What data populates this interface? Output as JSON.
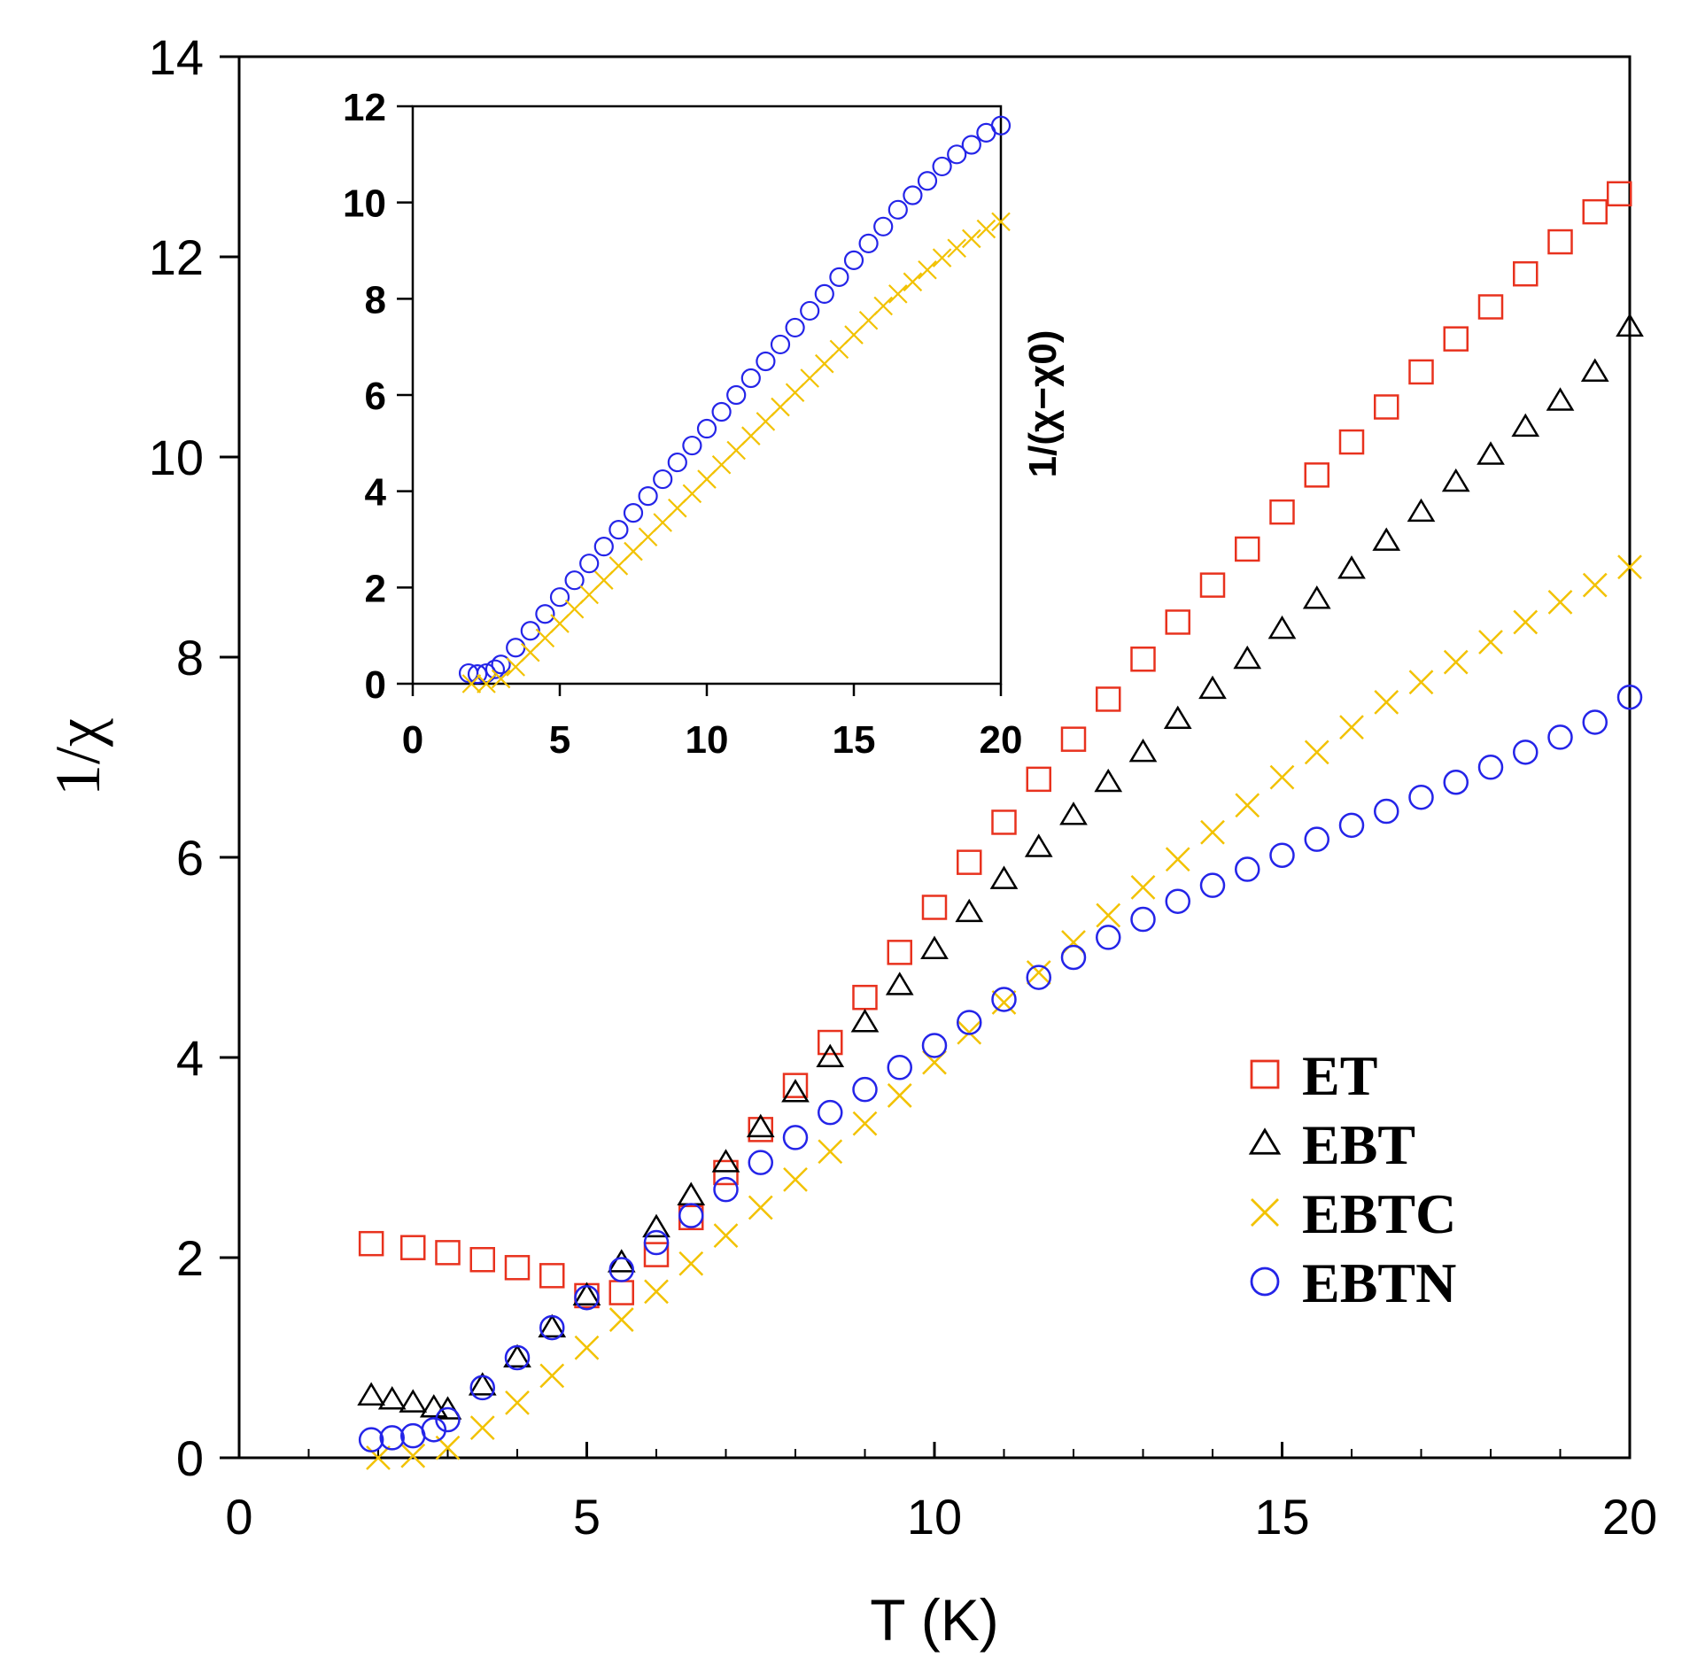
{
  "chart_data": [
    {
      "type": "scatter",
      "title": "",
      "xlabel": "T (K)",
      "ylabel": "1/χ",
      "xlim": [
        0,
        20
      ],
      "ylim": [
        0,
        14
      ],
      "xticks": [
        "0",
        "5",
        "10",
        "15",
        "20"
      ],
      "yticks": [
        "0",
        "2",
        "4",
        "6",
        "8",
        "10",
        "12",
        "14"
      ],
      "legend_position": "bottom-right",
      "legend": [
        "ET",
        "EBT",
        "EBTC",
        "EBTN"
      ],
      "series": [
        {
          "name": "ET",
          "marker": "square",
          "color": "#e8321e",
          "x": [
            1.9,
            2.5,
            3.0,
            3.5,
            4.0,
            4.5,
            5.0,
            5.5,
            6.0,
            6.5,
            7.0,
            7.5,
            8.0,
            8.5,
            9.0,
            9.5,
            10.0,
            10.5,
            11.0,
            11.5,
            12.0,
            12.5,
            13.0,
            13.5,
            14.0,
            14.5,
            15.0,
            15.5,
            16.0,
            16.5,
            17.0,
            17.5,
            18.0,
            18.5,
            19.0,
            19.5,
            19.85
          ],
          "y": [
            2.14,
            2.1,
            2.05,
            1.98,
            1.9,
            1.82,
            1.62,
            1.65,
            2.03,
            2.4,
            2.85,
            3.28,
            3.72,
            4.15,
            4.6,
            5.05,
            5.5,
            5.95,
            6.35,
            6.78,
            7.18,
            7.58,
            7.98,
            8.35,
            8.72,
            9.08,
            9.45,
            9.82,
            10.15,
            10.5,
            10.85,
            11.18,
            11.5,
            11.83,
            12.15,
            12.45,
            12.63
          ]
        },
        {
          "name": "EBT",
          "marker": "triangle",
          "color": "#000000",
          "x": [
            1.9,
            2.2,
            2.5,
            2.8,
            3.0,
            3.5,
            4.0,
            4.5,
            5.0,
            5.5,
            6.0,
            6.5,
            7.0,
            7.5,
            8.0,
            8.5,
            9.0,
            9.5,
            10.0,
            10.5,
            11.0,
            11.5,
            12.0,
            12.5,
            13.0,
            13.5,
            14.0,
            14.5,
            15.0,
            15.5,
            16.0,
            16.5,
            17.0,
            17.5,
            18.0,
            18.5,
            19.0,
            19.5,
            20.0
          ],
          "y": [
            0.62,
            0.58,
            0.55,
            0.5,
            0.48,
            0.72,
            1.0,
            1.3,
            1.62,
            1.95,
            2.3,
            2.62,
            2.95,
            3.3,
            3.65,
            4.0,
            4.35,
            4.72,
            5.08,
            5.45,
            5.78,
            6.1,
            6.42,
            6.75,
            7.05,
            7.38,
            7.68,
            7.98,
            8.28,
            8.58,
            8.88,
            9.16,
            9.45,
            9.75,
            10.02,
            10.3,
            10.56,
            10.85,
            11.3
          ]
        },
        {
          "name": "EBTC",
          "marker": "x",
          "color": "#f2c200",
          "x": [
            2.0,
            2.5,
            3.0,
            3.5,
            4.0,
            4.5,
            5.0,
            5.5,
            6.0,
            6.5,
            7.0,
            7.5,
            8.0,
            8.5,
            9.0,
            9.5,
            10.0,
            10.5,
            11.0,
            11.5,
            12.0,
            12.5,
            13.0,
            13.5,
            14.0,
            14.5,
            15.0,
            15.5,
            16.0,
            16.5,
            17.0,
            17.5,
            18.0,
            18.5,
            19.0,
            19.5,
            20.0
          ],
          "y": [
            0.0,
            0.02,
            0.1,
            0.3,
            0.55,
            0.82,
            1.1,
            1.38,
            1.66,
            1.94,
            2.22,
            2.5,
            2.78,
            3.06,
            3.34,
            3.62,
            3.95,
            4.25,
            4.55,
            4.85,
            5.15,
            5.42,
            5.7,
            5.98,
            6.25,
            6.52,
            6.8,
            7.05,
            7.3,
            7.55,
            7.75,
            7.95,
            8.15,
            8.35,
            8.55,
            8.72,
            8.9
          ]
        },
        {
          "name": "EBTN",
          "marker": "circle",
          "color": "#2424e8",
          "x": [
            1.9,
            2.2,
            2.5,
            2.8,
            3.0,
            3.5,
            4.0,
            4.5,
            5.0,
            5.5,
            6.0,
            6.5,
            7.0,
            7.5,
            8.0,
            8.5,
            9.0,
            9.5,
            10.0,
            10.5,
            11.0,
            11.5,
            12.0,
            12.5,
            13.0,
            13.5,
            14.0,
            14.5,
            15.0,
            15.5,
            16.0,
            16.5,
            17.0,
            17.5,
            18.0,
            18.5,
            19.0,
            19.5,
            20.0
          ],
          "y": [
            0.18,
            0.2,
            0.22,
            0.28,
            0.38,
            0.7,
            1.0,
            1.3,
            1.6,
            1.88,
            2.15,
            2.42,
            2.68,
            2.95,
            3.2,
            3.45,
            3.68,
            3.9,
            4.12,
            4.35,
            4.58,
            4.8,
            5.0,
            5.2,
            5.38,
            5.56,
            5.72,
            5.88,
            6.02,
            6.18,
            6.32,
            6.46,
            6.6,
            6.75,
            6.9,
            7.05,
            7.2,
            7.35,
            7.6
          ]
        }
      ]
    },
    {
      "type": "scatter",
      "title": "",
      "xlabel": "",
      "ylabel": "1/(χ−χ0)",
      "xlim": [
        0,
        20
      ],
      "ylim": [
        0,
        12
      ],
      "xticks": [
        "0",
        "5",
        "10",
        "15",
        "20"
      ],
      "yticks": [
        "0",
        "2",
        "4",
        "6",
        "8",
        "10",
        "12"
      ],
      "placement": "inset-top-left",
      "series": [
        {
          "name": "EBTN",
          "marker": "circle",
          "color": "#2424e8",
          "x": [
            1.9,
            2.2,
            2.5,
            2.8,
            3.0,
            3.5,
            4.0,
            4.5,
            5.0,
            5.5,
            6.0,
            6.5,
            7.0,
            7.5,
            8.0,
            8.5,
            9.0,
            9.5,
            10.0,
            10.5,
            11.0,
            11.5,
            12.0,
            12.5,
            13.0,
            13.5,
            14.0,
            14.5,
            15.0,
            15.5,
            16.0,
            16.5,
            17.0,
            17.5,
            18.0,
            18.5,
            19.0,
            19.5,
            20.0
          ],
          "y": [
            0.22,
            0.2,
            0.22,
            0.3,
            0.4,
            0.75,
            1.1,
            1.45,
            1.8,
            2.15,
            2.5,
            2.85,
            3.2,
            3.55,
            3.9,
            4.25,
            4.6,
            4.95,
            5.3,
            5.65,
            6.0,
            6.35,
            6.7,
            7.05,
            7.4,
            7.75,
            8.1,
            8.45,
            8.8,
            9.15,
            9.5,
            9.85,
            10.15,
            10.45,
            10.75,
            11.0,
            11.2,
            11.45,
            11.6
          ]
        },
        {
          "name": "EBTC",
          "marker": "x",
          "color": "#f2c200",
          "x": [
            2.0,
            2.5,
            3.0,
            3.5,
            4.0,
            4.5,
            5.0,
            5.5,
            6.0,
            6.5,
            7.0,
            7.5,
            8.0,
            8.5,
            9.0,
            9.5,
            10.0,
            10.5,
            11.0,
            11.5,
            12.0,
            12.5,
            13.0,
            13.5,
            14.0,
            14.5,
            15.0,
            15.5,
            16.0,
            16.5,
            17.0,
            17.5,
            18.0,
            18.5,
            19.0,
            19.5,
            20.0
          ],
          "y": [
            0.0,
            0.0,
            0.1,
            0.35,
            0.65,
            0.95,
            1.25,
            1.55,
            1.85,
            2.15,
            2.45,
            2.75,
            3.05,
            3.35,
            3.65,
            3.95,
            4.25,
            4.55,
            4.85,
            5.15,
            5.45,
            5.75,
            6.05,
            6.35,
            6.65,
            6.95,
            7.25,
            7.55,
            7.85,
            8.1,
            8.35,
            8.6,
            8.85,
            9.05,
            9.25,
            9.45,
            9.6
          ]
        }
      ]
    }
  ]
}
